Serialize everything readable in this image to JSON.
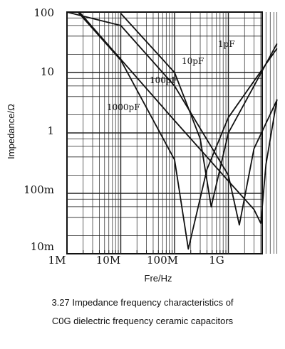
{
  "chart_data": {
    "type": "line",
    "xlabel": "Fre/Hz",
    "ylabel": "Impedance/Ω",
    "x_scale": "log",
    "y_scale": "log",
    "xlim": [
      "1M",
      "8G"
    ],
    "ylim": [
      "10m",
      "100"
    ],
    "grid": true,
    "x_ticks": [
      "1M",
      "10M",
      "100M",
      "1G"
    ],
    "y_ticks": [
      "100",
      "10",
      "1",
      "100m",
      "10m"
    ],
    "series": [
      {
        "name": "1pF",
        "x": [
          "1.7M",
          "100M",
          "1G",
          "3G",
          "4G",
          "5G",
          "8G"
        ],
        "y": [
          100,
          1.6,
          0.16,
          0.054,
          0.032,
          0.3,
          3.6
        ]
      },
      {
        "name": "10pF",
        "x": [
          "1M",
          "10M",
          "100M",
          "1G",
          "1.6G",
          "3G",
          "8G"
        ],
        "y": [
          100,
          60,
          6,
          0.2,
          0.03,
          0.55,
          3.5
        ]
      },
      {
        "name": "100pF",
        "x": [
          "10M",
          "100M",
          "300M",
          "480M",
          "1G",
          "3G",
          "8G"
        ],
        "y": [
          95,
          10,
          0.8,
          0.06,
          1,
          6,
          30
        ]
      },
      {
        "name": "1000pF",
        "x": [
          "1.6M",
          "10M",
          "100M",
          "180M",
          "400M",
          "1G",
          "8G"
        ],
        "y": [
          100,
          16,
          0.36,
          0.012,
          0.25,
          1.8,
          25
        ]
      }
    ]
  },
  "caption": {
    "line1": "3.27 Impedance frequency characteristics of",
    "line2": "C0G dielectric frequency ceramic capacitors"
  }
}
